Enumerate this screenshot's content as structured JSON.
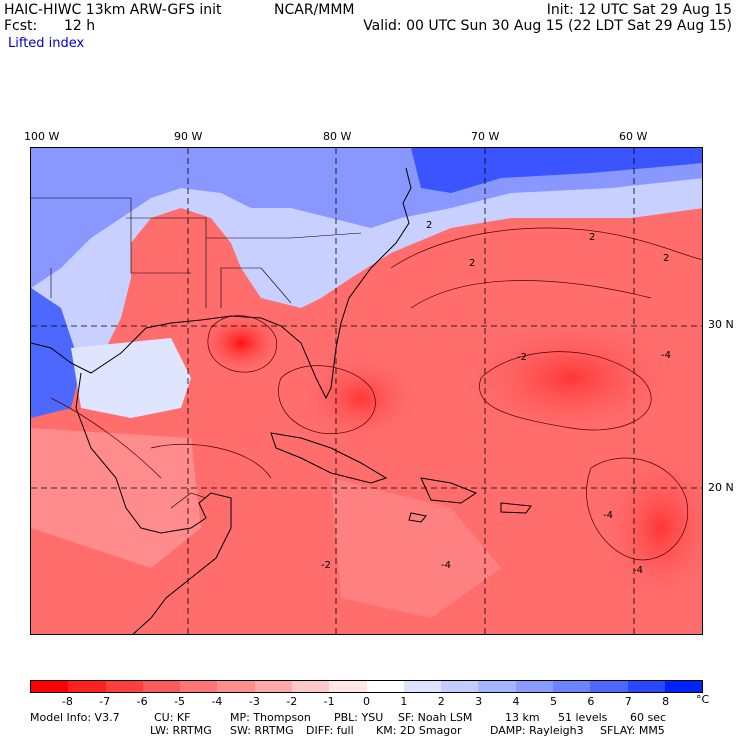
{
  "header": {
    "model": "HAIC-HIWC 13km ARW-GFS init",
    "org": "NCAR/MMM",
    "init": "Init: 12 UTC Sat 29 Aug 15",
    "fcst_label": "Fcst:",
    "fcst_value": "12 h",
    "valid": "Valid: 00 UTC Sun 30 Aug 15 (22 LDT Sat 29 Aug 15)",
    "field": "Lifted index"
  },
  "map": {
    "longitudes": [
      "100 W",
      "90 W",
      "80 W",
      "70 W",
      "60 W"
    ],
    "latitudes": [
      "30 N",
      "20 N"
    ],
    "contour_labels": [
      "2",
      "2",
      "2",
      "2",
      "-2",
      "-4",
      "-4",
      "-4",
      "-4",
      "-2"
    ]
  },
  "colorbar": {
    "ticks": [
      "-8",
      "-7",
      "-6",
      "-5",
      "-4",
      "-3",
      "-2",
      "-1",
      "0",
      "1",
      "2",
      "3",
      "4",
      "5",
      "6",
      "7",
      "8"
    ],
    "unit": "°C",
    "colors": [
      "#ff0000",
      "#ff2020",
      "#ff3f3f",
      "#ff5a5a",
      "#ff7474",
      "#ff8e8e",
      "#ffa8a8",
      "#ffc8c8",
      "#ffe6e6",
      "#ffffff",
      "#dde3ff",
      "#c2ccff",
      "#a6b5ff",
      "#8a9dff",
      "#6d84ff",
      "#4d68ff",
      "#2a48ff",
      "#0022ff"
    ]
  },
  "model_info": {
    "line1": [
      "Model Info: V3.7",
      "CU: KF",
      "MP: Thompson",
      "PBL: YSU",
      "SF: Noah LSM",
      "13 km",
      "51 levels",
      "60 sec"
    ],
    "line2": [
      "LW: RRTMG",
      "SW: RRTMG",
      "DIFF: full",
      "KM: 2D Smagor",
      "DAMP: Rayleigh3",
      "SFLAY: MM5"
    ]
  }
}
